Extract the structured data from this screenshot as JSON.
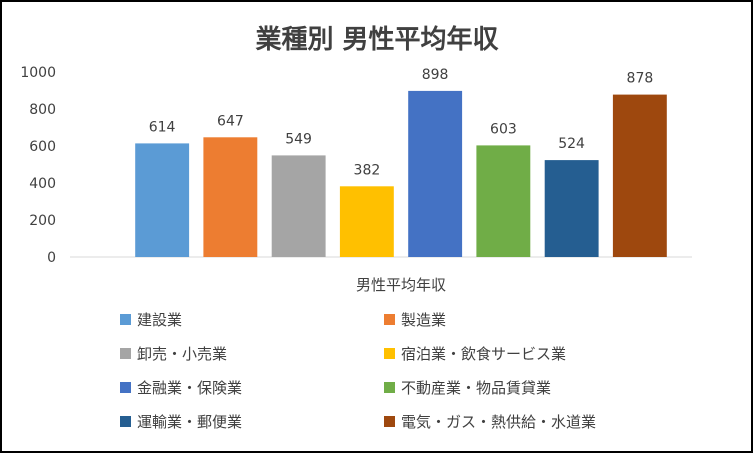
{
  "chart_data": {
    "type": "bar",
    "title": "業種別  男性平均年収",
    "categories": [
      "男性平均年収"
    ],
    "ylim": [
      0,
      1000
    ],
    "yticks": [
      0,
      200,
      400,
      600,
      800,
      1000
    ],
    "grid": false,
    "legend_position": "bottom",
    "series": [
      {
        "name": "建設業",
        "values": [
          614
        ],
        "color": "#5B9BD5"
      },
      {
        "name": "製造業",
        "values": [
          647
        ],
        "color": "#ED7D31"
      },
      {
        "name": "卸売・小売業",
        "values": [
          549
        ],
        "color": "#A5A5A5"
      },
      {
        "name": "宿泊業・飲食サービス業",
        "values": [
          382
        ],
        "color": "#FFC000"
      },
      {
        "name": "金融業・保険業",
        "values": [
          898
        ],
        "color": "#4472C4"
      },
      {
        "name": "不動産業・物品賃貸業",
        "values": [
          603
        ],
        "color": "#70AD47"
      },
      {
        "name": "運輸業・郵便業",
        "values": [
          524
        ],
        "color": "#255E91"
      },
      {
        "name": "電気・ガス・熱供給・水道業",
        "values": [
          878
        ],
        "color": "#9E480E"
      }
    ]
  }
}
